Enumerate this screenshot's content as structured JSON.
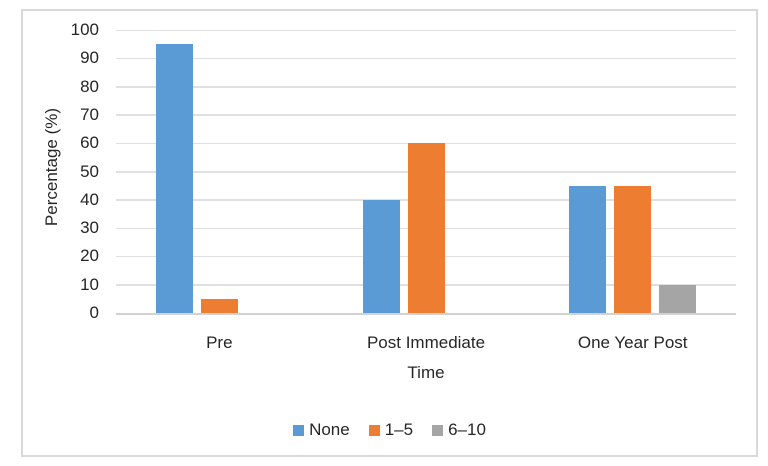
{
  "figure": {
    "background": "#ffffff",
    "border_color": "#d9d9d9",
    "text_color": "#262626"
  },
  "chart_data": {
    "type": "bar",
    "title": "",
    "xlabel": "Time",
    "ylabel": "Percentage (%)",
    "categories": [
      "Pre",
      "Post Immediate",
      "One Year Post"
    ],
    "series": [
      {
        "name": "None",
        "color": "#5b9bd5",
        "values": [
          95,
          40,
          45
        ]
      },
      {
        "name": "1–5",
        "color": "#ed7d31",
        "values": [
          5,
          60,
          45
        ]
      },
      {
        "name": "6–10",
        "color": "#a5a5a5",
        "values": [
          0,
          0,
          10
        ]
      }
    ],
    "ylim": [
      0,
      100
    ],
    "yticks": [
      0,
      10,
      20,
      30,
      40,
      50,
      60,
      70,
      80,
      90,
      100
    ],
    "grid": true,
    "gridline_color": "#e0e0e0",
    "axis_line_color": "#d2d2d2",
    "legend_position": "bottom"
  }
}
